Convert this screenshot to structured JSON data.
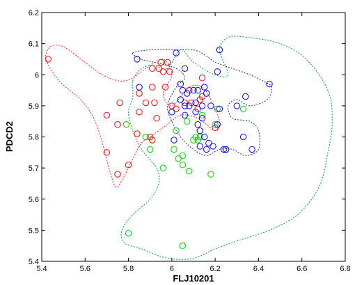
{
  "chart_data": {
    "type": "scatter",
    "xlabel": "FLJ10201",
    "ylabel": "PDCD2",
    "xlim": [
      5.4,
      6.8
    ],
    "ylim": [
      5.4,
      6.2
    ],
    "xticks": [
      "5.4",
      "5.6",
      "5.8",
      "6",
      "6.2",
      "6.4",
      "6.6",
      "6.8"
    ],
    "yticks": [
      "5.4",
      "5.5",
      "5.6",
      "5.7",
      "5.8",
      "5.9",
      "6",
      "6.1",
      "6.2"
    ],
    "grid": false,
    "colors": {
      "red": "#ff0000",
      "green": "#00cc00",
      "blue": "#0000ff",
      "contour_red": "#ee2222",
      "contour_green": "#009944",
      "contour_blue": "#222288"
    },
    "series": [
      {
        "color": "red",
        "points": [
          [
            5.43,
            6.05
          ],
          [
            5.7,
            5.87
          ],
          [
            5.7,
            5.75
          ],
          [
            5.75,
            5.68
          ],
          [
            5.75,
            5.84
          ],
          [
            5.76,
            5.91
          ],
          [
            5.8,
            5.71
          ],
          [
            5.84,
            5.81
          ],
          [
            5.85,
            5.94
          ],
          [
            5.85,
            5.88
          ],
          [
            5.88,
            5.91
          ],
          [
            5.9,
            5.8
          ],
          [
            5.91,
            6.02
          ],
          [
            5.91,
            5.96
          ],
          [
            5.91,
            5.79
          ],
          [
            5.92,
            5.91
          ],
          [
            5.93,
            5.86
          ],
          [
            5.94,
            6.02
          ],
          [
            5.95,
            6.04
          ],
          [
            5.96,
            6.01
          ],
          [
            5.97,
            5.96
          ],
          [
            5.98,
            6.04
          ],
          [
            5.99,
            6.01
          ],
          [
            6.0,
            5.9
          ],
          [
            6.02,
            5.89
          ],
          [
            6.06,
            5.91
          ],
          [
            6.08,
            5.95
          ],
          [
            6.09,
            5.91
          ],
          [
            6.12,
            5.89
          ],
          [
            6.13,
            5.92
          ],
          [
            6.14,
            5.93
          ],
          [
            6.14,
            5.99
          ],
          [
            6.2,
            5.83
          ]
        ]
      },
      {
        "color": "green",
        "points": [
          [
            5.79,
            5.84
          ],
          [
            5.8,
            5.49
          ],
          [
            5.88,
            5.8
          ],
          [
            5.9,
            5.76
          ],
          [
            5.96,
            5.7
          ],
          [
            6.01,
            5.76
          ],
          [
            6.02,
            5.82
          ],
          [
            6.03,
            5.73
          ],
          [
            6.05,
            5.71
          ],
          [
            6.05,
            5.74
          ],
          [
            6.05,
            5.45
          ],
          [
            6.07,
            5.85
          ],
          [
            6.08,
            5.69
          ],
          [
            6.1,
            5.79
          ],
          [
            6.11,
            5.8
          ],
          [
            6.12,
            5.79
          ],
          [
            6.13,
            5.8
          ],
          [
            6.14,
            5.87
          ],
          [
            6.18,
            5.68
          ],
          [
            6.2,
            5.84
          ],
          [
            6.21,
            5.89
          ],
          [
            6.22,
            6.08
          ],
          [
            6.25,
            5.76
          ],
          [
            6.33,
            5.89
          ]
        ]
      },
      {
        "color": "blue",
        "points": [
          [
            5.84,
            6.05
          ],
          [
            5.85,
            5.96
          ],
          [
            6.0,
            5.88
          ],
          [
            6.01,
            5.79
          ],
          [
            6.02,
            6.07
          ],
          [
            6.04,
            5.92
          ],
          [
            6.04,
            5.97
          ],
          [
            6.05,
            5.95
          ],
          [
            6.06,
            5.87
          ],
          [
            6.06,
            5.9
          ],
          [
            6.06,
            6.02
          ],
          [
            6.07,
            5.94
          ],
          [
            6.08,
            5.9
          ],
          [
            6.1,
            5.95
          ],
          [
            6.11,
            5.88
          ],
          [
            6.11,
            5.91
          ],
          [
            6.12,
            5.95
          ],
          [
            6.12,
            5.84
          ],
          [
            6.13,
            5.77
          ],
          [
            6.13,
            5.82
          ],
          [
            6.14,
            5.86
          ],
          [
            6.14,
            5.9
          ],
          [
            6.15,
            5.8
          ],
          [
            6.15,
            5.96
          ],
          [
            6.16,
            5.94
          ],
          [
            6.16,
            5.76
          ],
          [
            6.17,
            5.78
          ],
          [
            6.18,
            5.9
          ],
          [
            6.19,
            5.77
          ],
          [
            6.21,
            6.01
          ],
          [
            6.21,
            5.84
          ],
          [
            6.22,
            5.89
          ],
          [
            6.22,
            6.08
          ],
          [
            6.24,
            5.76
          ],
          [
            6.25,
            5.76
          ],
          [
            6.3,
            5.9
          ],
          [
            6.33,
            5.8
          ],
          [
            6.34,
            5.93
          ],
          [
            6.37,
            5.76
          ],
          [
            6.45,
            5.97
          ]
        ]
      }
    ],
    "contours": [
      {
        "color": "contour_red",
        "points": [
          [
            5.42,
            6.05
          ],
          [
            5.44,
            6.09
          ],
          [
            5.5,
            6.09
          ],
          [
            5.6,
            6.04
          ],
          [
            5.68,
            6.0
          ],
          [
            5.76,
            5.98
          ],
          [
            5.82,
            5.99
          ],
          [
            5.88,
            6.02
          ],
          [
            5.96,
            6.05
          ],
          [
            6.0,
            6.0
          ],
          [
            5.96,
            5.94
          ],
          [
            6.0,
            5.9
          ],
          [
            6.08,
            5.96
          ],
          [
            6.14,
            5.96
          ],
          [
            6.18,
            5.92
          ],
          [
            6.22,
            5.85
          ],
          [
            6.2,
            5.82
          ],
          [
            6.12,
            5.86
          ],
          [
            6.04,
            5.87
          ],
          [
            5.98,
            5.84
          ],
          [
            5.9,
            5.8
          ],
          [
            5.86,
            5.78
          ],
          [
            5.82,
            5.73
          ],
          [
            5.77,
            5.66
          ],
          [
            5.74,
            5.64
          ],
          [
            5.71,
            5.7
          ],
          [
            5.68,
            5.78
          ],
          [
            5.64,
            5.86
          ],
          [
            5.58,
            5.92
          ],
          [
            5.48,
            5.98
          ],
          [
            5.42,
            6.05
          ]
        ]
      },
      {
        "color": "contour_green",
        "points": [
          [
            5.82,
            5.98
          ],
          [
            5.86,
            6.02
          ],
          [
            5.92,
            6.03
          ],
          [
            5.98,
            6.02
          ],
          [
            6.04,
            6.08
          ],
          [
            6.1,
            6.04
          ],
          [
            6.2,
            6.0
          ],
          [
            6.26,
            6.0
          ],
          [
            6.22,
            6.08
          ],
          [
            6.26,
            6.12
          ],
          [
            6.35,
            6.12
          ],
          [
            6.5,
            6.1
          ],
          [
            6.62,
            6.05
          ],
          [
            6.72,
            5.95
          ],
          [
            6.74,
            5.85
          ],
          [
            6.72,
            5.75
          ],
          [
            6.68,
            5.64
          ],
          [
            6.58,
            5.55
          ],
          [
            6.45,
            5.5
          ],
          [
            6.32,
            5.47
          ],
          [
            6.2,
            5.44
          ],
          [
            6.1,
            5.41
          ],
          [
            5.98,
            5.41
          ],
          [
            5.86,
            5.44
          ],
          [
            5.78,
            5.46
          ],
          [
            5.77,
            5.5
          ],
          [
            5.82,
            5.55
          ],
          [
            5.9,
            5.6
          ],
          [
            5.94,
            5.65
          ],
          [
            5.93,
            5.7
          ],
          [
            5.86,
            5.76
          ],
          [
            5.82,
            5.82
          ],
          [
            5.8,
            5.88
          ],
          [
            5.82,
            5.93
          ],
          [
            5.82,
            5.98
          ]
        ]
      },
      {
        "color": "contour_blue",
        "points": [
          [
            5.82,
            6.07
          ],
          [
            5.9,
            6.08
          ],
          [
            6.0,
            6.08
          ],
          [
            6.1,
            6.08
          ],
          [
            6.16,
            6.06
          ],
          [
            6.2,
            6.04
          ],
          [
            6.28,
            6.02
          ],
          [
            6.36,
            6.0
          ],
          [
            6.42,
            5.98
          ],
          [
            6.46,
            5.96
          ],
          [
            6.44,
            5.92
          ],
          [
            6.36,
            5.9
          ],
          [
            6.3,
            5.92
          ],
          [
            6.26,
            5.9
          ],
          [
            6.28,
            5.86
          ],
          [
            6.36,
            5.85
          ],
          [
            6.4,
            5.82
          ],
          [
            6.4,
            5.76
          ],
          [
            6.34,
            5.74
          ],
          [
            6.28,
            5.76
          ],
          [
            6.22,
            5.76
          ],
          [
            6.16,
            5.74
          ],
          [
            6.1,
            5.76
          ],
          [
            6.04,
            5.8
          ],
          [
            6.0,
            5.85
          ],
          [
            5.98,
            5.9
          ],
          [
            6.02,
            5.96
          ],
          [
            6.06,
            5.99
          ],
          [
            6.02,
            6.02
          ],
          [
            5.92,
            6.04
          ],
          [
            5.86,
            6.05
          ],
          [
            5.82,
            6.07
          ]
        ]
      }
    ]
  }
}
